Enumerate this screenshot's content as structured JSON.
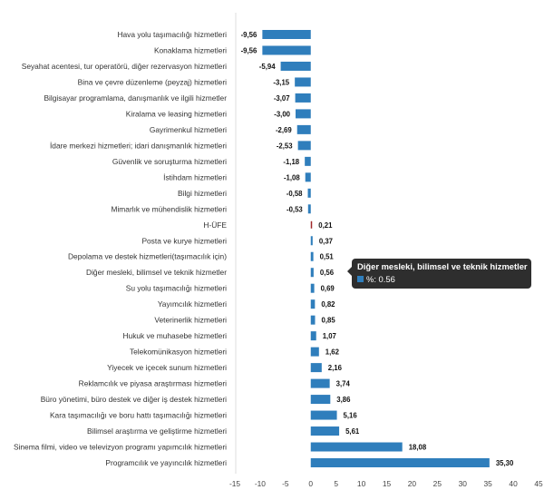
{
  "chart_data": {
    "type": "bar",
    "orientation": "horizontal",
    "categories": [
      "Hava yolu taşımacılığı hizmetleri",
      "Konaklama hizmetleri",
      "Seyahat acentesi, tur operatörü, diğer rezervasyon hizmetleri",
      "Bina ve çevre düzenleme (peyzaj) hizmetleri",
      "Bilgisayar programlama, danışmanlık ve ilgili hizmetler",
      "Kiralama ve leasing hizmetleri",
      "Gayrimenkul hizmetleri",
      "İdare merkezi hizmetleri; idari danışmanlık hizmetleri",
      "Güvenlik ve soruşturma hizmetleri",
      "İstihdam hizmetleri",
      "Bilgi hizmetleri",
      "Mimarlık ve mühendislik hizmetleri",
      "H-ÜFE",
      "Posta ve kurye hizmetleri",
      "Depolama ve destek hizmetleri(taşımacılık için)",
      "Diğer mesleki, bilimsel ve teknik hizmetler",
      "Su yolu taşımacılığı hizmetleri",
      "Yayımcılık hizmetleri",
      "Veterinerlik hizmetleri",
      "Hukuk ve muhasebe hizmetleri",
      "Telekomünikasyon hizmetleri",
      "Yiyecek ve içecek sunum hizmetleri",
      "Reklamcılık ve piyasa araştırması hizmetleri",
      "Büro yönetimi, büro destek ve diğer iş destek hizmetleri",
      "Kara taşımacılığı ve boru hattı taşımacılığı hizmetleri",
      "Bilimsel araştırma ve geliştirme hizmetleri",
      "Sinema filmi, video ve televizyon programı yapımcılık hizmetleri",
      "Programcılık ve yayıncılık hizmetleri"
    ],
    "values": [
      -9.56,
      -9.56,
      -5.94,
      -3.15,
      -3.07,
      -3.0,
      -2.69,
      -2.53,
      -1.18,
      -1.08,
      -0.58,
      -0.53,
      0.21,
      0.37,
      0.51,
      0.56,
      0.69,
      0.82,
      0.85,
      1.07,
      1.62,
      2.16,
      3.74,
      3.86,
      5.16,
      5.61,
      18.08,
      35.3
    ],
    "value_labels": [
      "-9,56",
      "-9,56",
      "-5,94",
      "-3,15",
      "-3,07",
      "-3,00",
      "-2,69",
      "-2,53",
      "-1,18",
      "-1,08",
      "-0,58",
      "-0,53",
      "0,21",
      "0,37",
      "0,51",
      "0,56",
      "0,69",
      "0,82",
      "0,85",
      "1,07",
      "1,62",
      "2,16",
      "3,74",
      "3,86",
      "5,16",
      "5,61",
      "18,08",
      "35,30"
    ],
    "highlight_category": "H-ÜFE",
    "xlim": [
      -15,
      45
    ],
    "xticks": [
      "-15",
      "-10",
      "-5",
      "0",
      "5",
      "10",
      "15",
      "20",
      "25",
      "30",
      "35",
      "40",
      "45"
    ],
    "xtick_values": [
      -15,
      -10,
      -5,
      0,
      5,
      10,
      15,
      20,
      25,
      30,
      35,
      40,
      45
    ],
    "title": "",
    "xlabel": "",
    "ylabel": "",
    "grid": false,
    "colors": {
      "bar": "#2f7ebc",
      "highlight": "#a0282a"
    }
  },
  "tooltip": {
    "title": "Diğer mesleki, bilimsel ve teknik hizmetler",
    "value_text": "%: 0.56"
  }
}
